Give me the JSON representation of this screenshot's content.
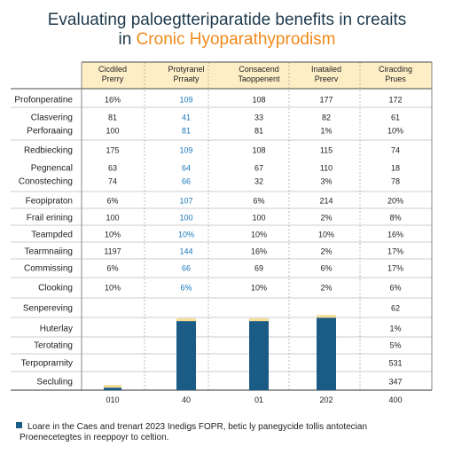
{
  "title_line1": "Evaluating paloegtteriparatide benefits in creaits",
  "title_line2_a": "in ",
  "title_line2_b": "Cronic Hyoparathyprodism",
  "chart_data": {
    "type": "table",
    "columns": [
      {
        "line1": "Cicdiled",
        "line2": "Prerry"
      },
      {
        "line1": "Protyranel",
        "line2": "Prraaty"
      },
      {
        "line1": "Consacend",
        "line2": "Taoppenent"
      },
      {
        "line1": "Inatailed",
        "line2": "Preerv"
      },
      {
        "line1": "Ciracding",
        "line2": "Prues"
      }
    ],
    "rows": [
      {
        "label": "Profonperatine",
        "cells": [
          "16%",
          "109",
          "108",
          "177",
          "172"
        ]
      },
      {
        "label": "Clasvering",
        "cells": [
          "81",
          "41",
          "33",
          "82",
          "61"
        ]
      },
      {
        "label": "Perforaaing",
        "cells": [
          "100",
          "81",
          "81",
          "1%",
          "10%"
        ]
      },
      {
        "label": "Redbiecking",
        "cells": [
          "175",
          "109",
          "108",
          "115",
          "74"
        ]
      },
      {
        "label": "Pegnencal",
        "cells": [
          "63",
          "64",
          "67",
          "110",
          "18"
        ]
      },
      {
        "label": "Conosteching",
        "cells": [
          "74",
          "66",
          "32",
          "3%",
          "78"
        ]
      },
      {
        "label": "Feopipraton",
        "cells": [
          "6%",
          "107",
          "6%",
          "214",
          "20%"
        ]
      },
      {
        "label": "Frail erining",
        "cells": [
          "100",
          "100",
          "100",
          "2%",
          "8%"
        ]
      },
      {
        "label": "Teampded",
        "cells": [
          "10%",
          "10%",
          "10%",
          "10%",
          "16%"
        ]
      },
      {
        "label": "Tearmnaiing",
        "cells": [
          "1197",
          "144",
          "16%",
          "2%",
          "17%"
        ]
      },
      {
        "label": "Commissing",
        "cells": [
          "6%",
          "66",
          "69",
          "6%",
          "17%"
        ]
      },
      {
        "label": "Clooking",
        "cells": [
          "10%",
          "6%",
          "10%",
          "2%",
          "6%"
        ]
      },
      {
        "label": "Senpereving",
        "cells": [
          "",
          "",
          "",
          "",
          "62"
        ]
      },
      {
        "label": "Huterlay",
        "cells": [
          "",
          "",
          "",
          "",
          "1%"
        ]
      },
      {
        "label": "Terotating",
        "cells": [
          "",
          "",
          "",
          "",
          "5%"
        ]
      },
      {
        "label": "Terpoprarnity",
        "cells": [
          "",
          "",
          "",
          "",
          "531"
        ]
      },
      {
        "label": "Secluling",
        "cells": [
          "",
          "",
          "",
          "",
          "347"
        ]
      }
    ],
    "highlight_column": 1,
    "bars": {
      "categories": [
        "010",
        "40",
        "01",
        "202",
        "400"
      ],
      "values": [
        3,
        82,
        82,
        86,
        0
      ],
      "ylim": [
        0,
        100
      ]
    },
    "colors": {
      "header_fill": "#fdeec6",
      "bar": "#1a5c86",
      "bar_cap": "#f5dc92",
      "highlight_text": "#1877b8"
    }
  },
  "legend": {
    "line1": "Loare in the Caes and trenart 2023 Inedigs FOPR, betic ly panegycide tollis antotecian",
    "line2": "Proenecetegtes in reeppoyr to celtion."
  }
}
